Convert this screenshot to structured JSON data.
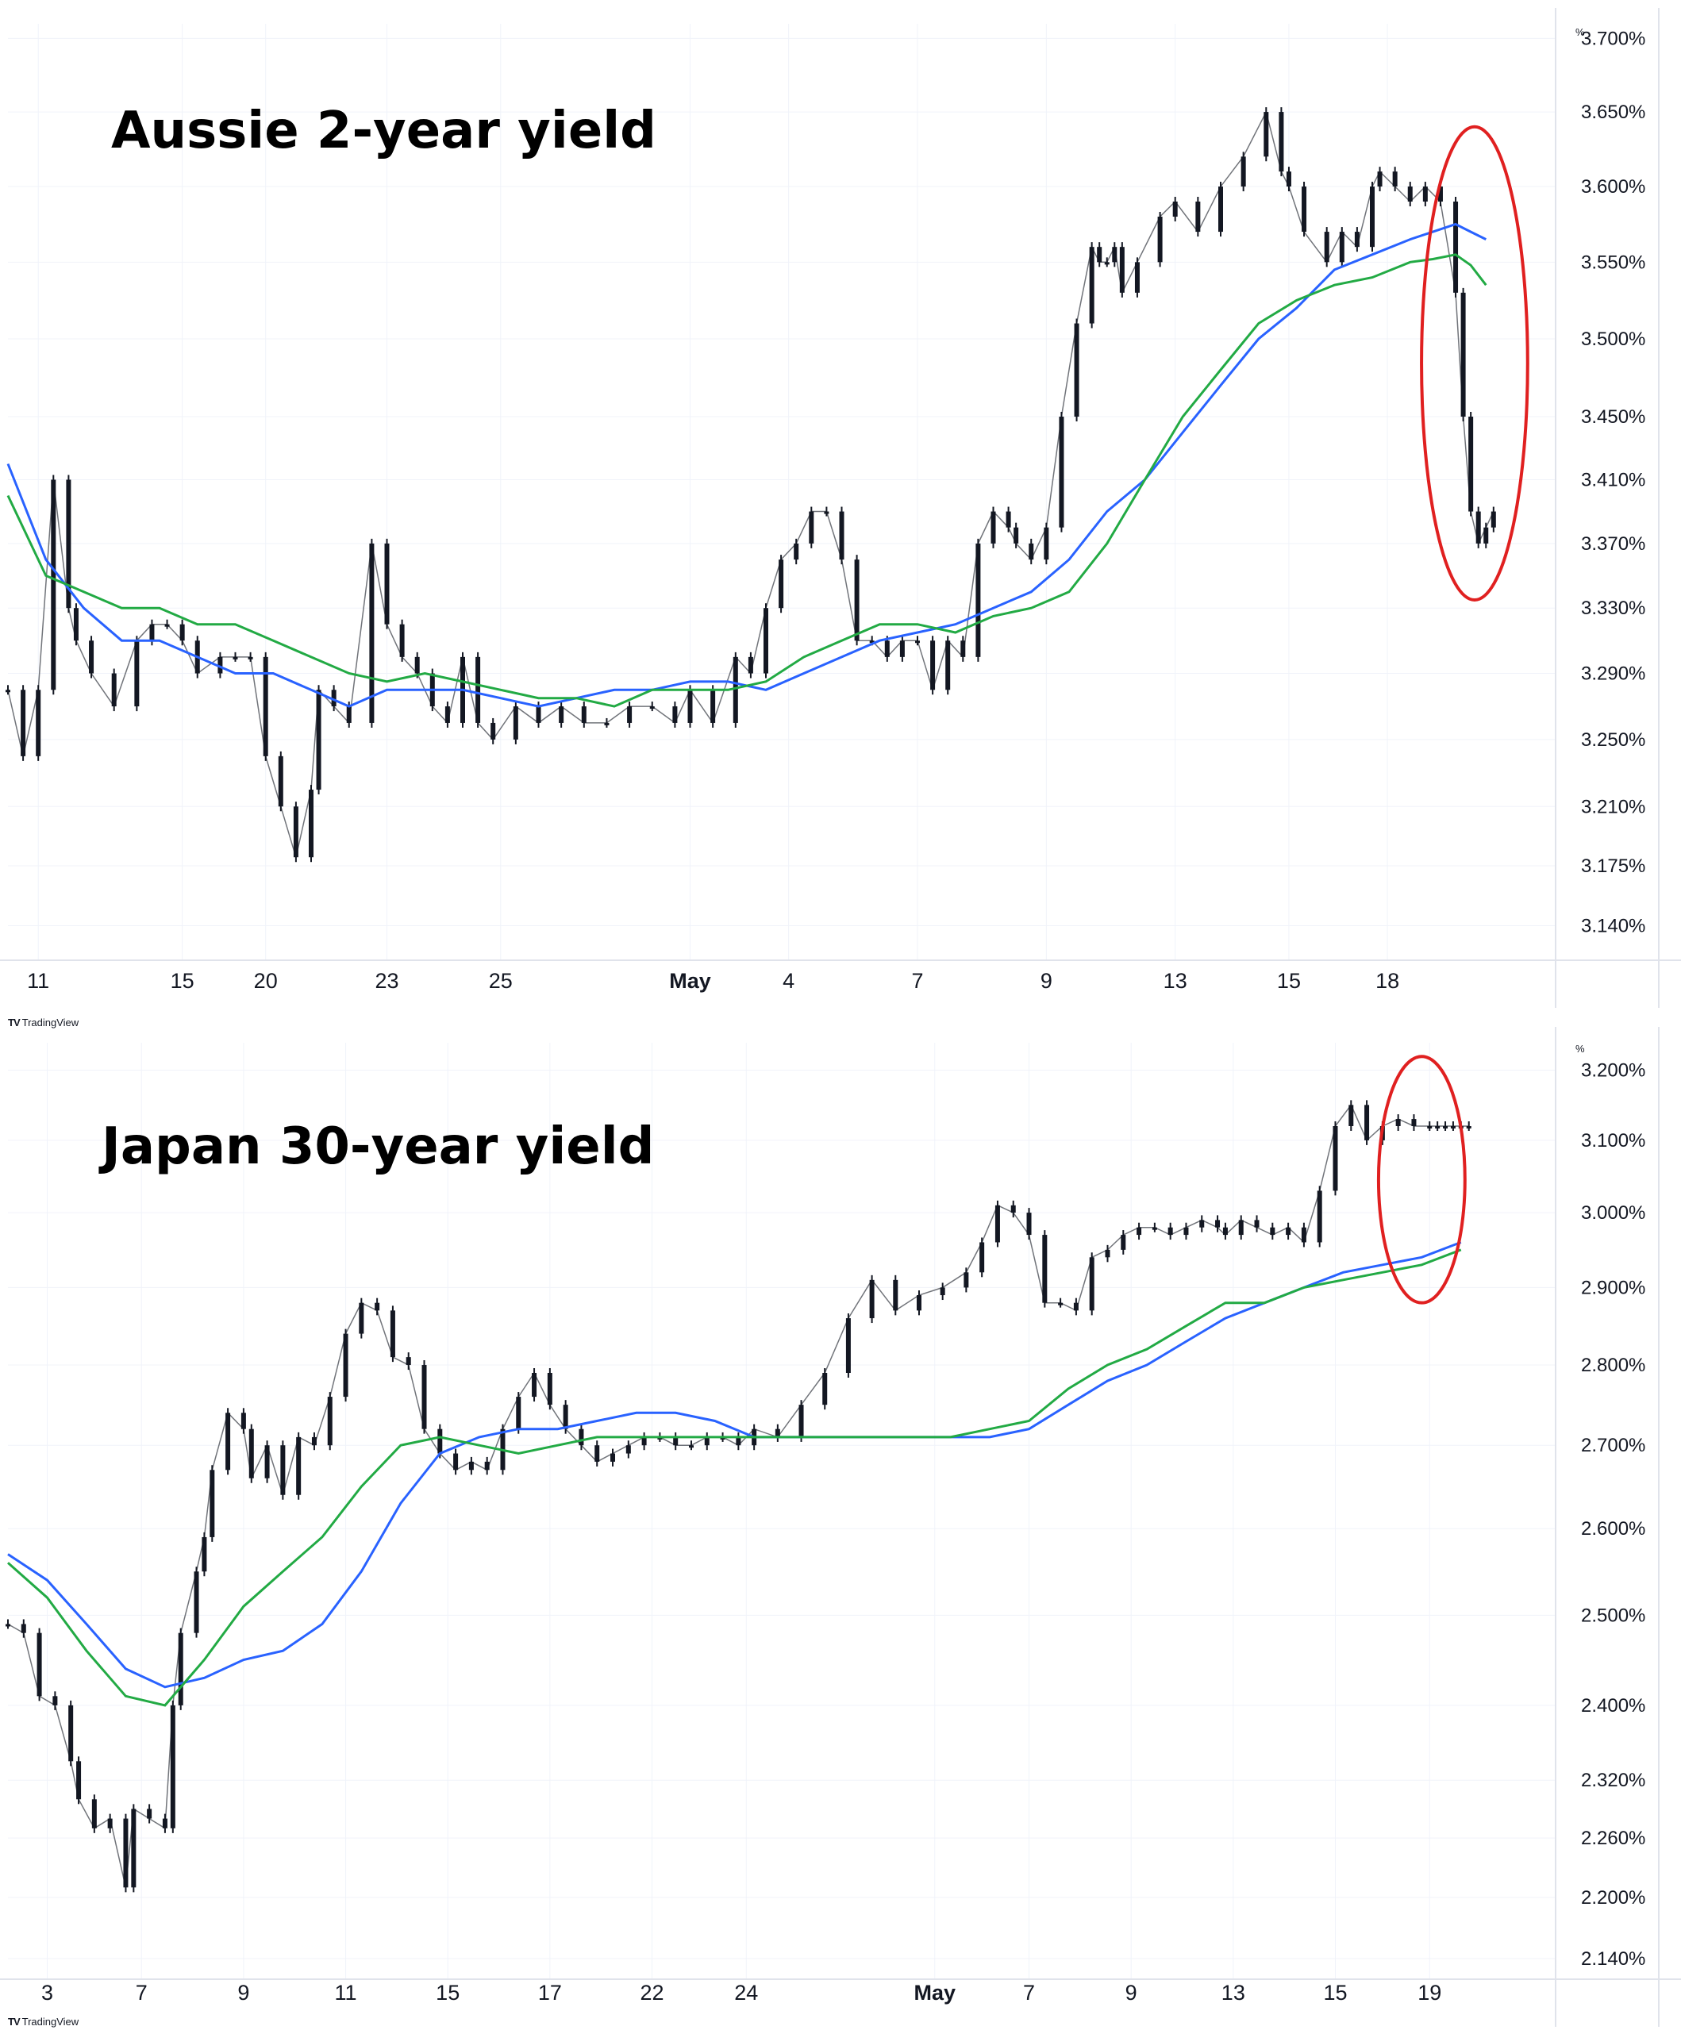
{
  "brand": {
    "logo": "TV",
    "name": "TradingView"
  },
  "colors": {
    "ma_blue": "#2962ff",
    "ma_green": "#22aa44",
    "highlight": "#e02020",
    "candle": "#131722",
    "grid": "#f0f3fa",
    "axis": "#e0e3eb"
  },
  "chart_data": [
    {
      "type": "line",
      "title": "Aussie 2-year yield",
      "unit_label": "%",
      "yscale": "log",
      "ylim": [
        3.12,
        3.71
      ],
      "y_ticks": [
        "3.700%",
        "3.650%",
        "3.600%",
        "3.550%",
        "3.500%",
        "3.450%",
        "3.410%",
        "3.370%",
        "3.330%",
        "3.290%",
        "3.250%",
        "3.210%",
        "3.175%",
        "3.140%"
      ],
      "x_ticks": [
        {
          "label": "11",
          "t": 0.04
        },
        {
          "label": "15",
          "t": 0.23
        },
        {
          "label": "20",
          "t": 0.34
        },
        {
          "label": "23",
          "t": 0.5
        },
        {
          "label": "25",
          "t": 0.65
        },
        {
          "label": "May",
          "t": 0.9,
          "bold": true
        },
        {
          "label": "4",
          "t": 1.03
        },
        {
          "label": "7",
          "t": 1.2
        },
        {
          "label": "9",
          "t": 1.37
        },
        {
          "label": "13",
          "t": 1.54
        },
        {
          "label": "15",
          "t": 1.69
        },
        {
          "label": "18",
          "t": 1.82
        }
      ],
      "x_range": [
        0,
        2.0
      ],
      "series": [
        {
          "kind": "price",
          "x": [
            0.0,
            0.02,
            0.04,
            0.06,
            0.08,
            0.09,
            0.11,
            0.14,
            0.17,
            0.19,
            0.21,
            0.23,
            0.25,
            0.28,
            0.3,
            0.32,
            0.34,
            0.36,
            0.38,
            0.4,
            0.41,
            0.43,
            0.45,
            0.48,
            0.5,
            0.52,
            0.54,
            0.56,
            0.58,
            0.6,
            0.62,
            0.64,
            0.67,
            0.7,
            0.73,
            0.76,
            0.79,
            0.82,
            0.85,
            0.88,
            0.9,
            0.93,
            0.96,
            0.98,
            1.0,
            1.02,
            1.04,
            1.06,
            1.08,
            1.1,
            1.12,
            1.14,
            1.16,
            1.18,
            1.2,
            1.22,
            1.24,
            1.26,
            1.28,
            1.3,
            1.32,
            1.33,
            1.35,
            1.37,
            1.39,
            1.41,
            1.43,
            1.44,
            1.45,
            1.46,
            1.47,
            1.49,
            1.52,
            1.54,
            1.57,
            1.6,
            1.63,
            1.66,
            1.68,
            1.69,
            1.71,
            1.74,
            1.76,
            1.78,
            1.8,
            1.81,
            1.83,
            1.85,
            1.87,
            1.89,
            1.91,
            1.92,
            1.93,
            1.94,
            1.95,
            1.96
          ],
          "y": [
            3.28,
            3.24,
            3.28,
            3.41,
            3.33,
            3.31,
            3.29,
            3.27,
            3.31,
            3.32,
            3.32,
            3.31,
            3.29,
            3.3,
            3.3,
            3.3,
            3.24,
            3.21,
            3.18,
            3.22,
            3.28,
            3.27,
            3.26,
            3.37,
            3.32,
            3.3,
            3.29,
            3.27,
            3.26,
            3.3,
            3.26,
            3.25,
            3.27,
            3.26,
            3.27,
            3.26,
            3.26,
            3.27,
            3.27,
            3.26,
            3.28,
            3.26,
            3.3,
            3.29,
            3.33,
            3.36,
            3.37,
            3.39,
            3.39,
            3.36,
            3.31,
            3.31,
            3.3,
            3.31,
            3.31,
            3.28,
            3.31,
            3.3,
            3.37,
            3.39,
            3.38,
            3.37,
            3.36,
            3.38,
            3.45,
            3.51,
            3.56,
            3.55,
            3.55,
            3.56,
            3.53,
            3.55,
            3.58,
            3.59,
            3.57,
            3.6,
            3.62,
            3.65,
            3.61,
            3.6,
            3.57,
            3.55,
            3.57,
            3.56,
            3.6,
            3.61,
            3.6,
            3.59,
            3.6,
            3.59,
            3.53,
            3.45,
            3.39,
            3.37,
            3.38,
            3.39
          ]
        },
        {
          "kind": "ma",
          "name_key": "blue",
          "x": [
            0.0,
            0.05,
            0.1,
            0.15,
            0.2,
            0.25,
            0.3,
            0.35,
            0.4,
            0.45,
            0.5,
            0.55,
            0.6,
            0.65,
            0.7,
            0.75,
            0.8,
            0.85,
            0.9,
            0.95,
            1.0,
            1.05,
            1.1,
            1.15,
            1.2,
            1.25,
            1.3,
            1.35,
            1.4,
            1.45,
            1.5,
            1.55,
            1.6,
            1.65,
            1.7,
            1.75,
            1.8,
            1.85,
            1.88,
            1.91,
            1.93,
            1.95
          ],
          "y": [
            3.42,
            3.36,
            3.33,
            3.31,
            3.31,
            3.3,
            3.29,
            3.29,
            3.28,
            3.27,
            3.28,
            3.28,
            3.28,
            3.275,
            3.27,
            3.275,
            3.28,
            3.28,
            3.285,
            3.285,
            3.28,
            3.29,
            3.3,
            3.31,
            3.315,
            3.32,
            3.33,
            3.34,
            3.36,
            3.39,
            3.41,
            3.44,
            3.47,
            3.5,
            3.52,
            3.545,
            3.555,
            3.565,
            3.57,
            3.575,
            3.57,
            3.565
          ]
        },
        {
          "kind": "ma",
          "name_key": "green",
          "x": [
            0.0,
            0.05,
            0.1,
            0.15,
            0.2,
            0.25,
            0.3,
            0.35,
            0.4,
            0.45,
            0.5,
            0.55,
            0.6,
            0.65,
            0.7,
            0.75,
            0.8,
            0.85,
            0.9,
            0.95,
            1.0,
            1.05,
            1.1,
            1.15,
            1.2,
            1.25,
            1.3,
            1.35,
            1.4,
            1.45,
            1.5,
            1.55,
            1.6,
            1.65,
            1.7,
            1.75,
            1.8,
            1.85,
            1.88,
            1.91,
            1.93,
            1.95
          ],
          "y": [
            3.4,
            3.35,
            3.34,
            3.33,
            3.33,
            3.32,
            3.32,
            3.31,
            3.3,
            3.29,
            3.285,
            3.29,
            3.285,
            3.28,
            3.275,
            3.275,
            3.27,
            3.28,
            3.28,
            3.28,
            3.285,
            3.3,
            3.31,
            3.32,
            3.32,
            3.315,
            3.325,
            3.33,
            3.34,
            3.37,
            3.41,
            3.45,
            3.48,
            3.51,
            3.525,
            3.535,
            3.54,
            3.55,
            3.552,
            3.555,
            3.548,
            3.535
          ]
        }
      ],
      "highlight": {
        "shape": "ellipse",
        "x_center": 1.935,
        "y_center": 3.46,
        "x_radius": 0.07,
        "y_span": [
          3.335,
          3.64
        ]
      }
    },
    {
      "type": "line",
      "title": "Japan 30-year yield",
      "unit_label": "%",
      "yscale": "log",
      "ylim": [
        2.12,
        3.24
      ],
      "y_ticks": [
        "3.200%",
        "3.100%",
        "3.000%",
        "2.900%",
        "2.800%",
        "2.700%",
        "2.600%",
        "2.500%",
        "2.400%",
        "2.320%",
        "2.260%",
        "2.200%",
        "2.140%"
      ],
      "x_ticks": [
        {
          "label": "3",
          "t": 0.05
        },
        {
          "label": "7",
          "t": 0.17
        },
        {
          "label": "9",
          "t": 0.3
        },
        {
          "label": "11",
          "t": 0.43
        },
        {
          "label": "15",
          "t": 0.56
        },
        {
          "label": "17",
          "t": 0.69
        },
        {
          "label": "22",
          "t": 0.82
        },
        {
          "label": "24",
          "t": 0.94
        },
        {
          "label": "May",
          "t": 1.18,
          "bold": true
        },
        {
          "label": "7",
          "t": 1.3
        },
        {
          "label": "9",
          "t": 1.43
        },
        {
          "label": "13",
          "t": 1.56
        },
        {
          "label": "15",
          "t": 1.69
        },
        {
          "label": "19",
          "t": 1.81
        }
      ],
      "x_range": [
        0,
        1.93
      ],
      "series": [
        {
          "kind": "price",
          "x": [
            0.0,
            0.02,
            0.04,
            0.06,
            0.08,
            0.09,
            0.11,
            0.13,
            0.15,
            0.16,
            0.18,
            0.2,
            0.21,
            0.22,
            0.24,
            0.25,
            0.26,
            0.28,
            0.3,
            0.31,
            0.33,
            0.35,
            0.37,
            0.39,
            0.41,
            0.43,
            0.45,
            0.47,
            0.49,
            0.51,
            0.53,
            0.55,
            0.57,
            0.59,
            0.61,
            0.63,
            0.65,
            0.67,
            0.69,
            0.71,
            0.73,
            0.75,
            0.77,
            0.79,
            0.81,
            0.83,
            0.85,
            0.87,
            0.89,
            0.91,
            0.93,
            0.95,
            0.98,
            1.01,
            1.04,
            1.07,
            1.1,
            1.13,
            1.16,
            1.19,
            1.22,
            1.24,
            1.26,
            1.28,
            1.3,
            1.32,
            1.34,
            1.36,
            1.38,
            1.4,
            1.42,
            1.44,
            1.46,
            1.48,
            1.5,
            1.52,
            1.54,
            1.55,
            1.57,
            1.59,
            1.61,
            1.63,
            1.65,
            1.67,
            1.69,
            1.71,
            1.73,
            1.75,
            1.77,
            1.79,
            1.81,
            1.82,
            1.83,
            1.84,
            1.85,
            1.86
          ],
          "y": [
            2.49,
            2.48,
            2.41,
            2.4,
            2.34,
            2.3,
            2.27,
            2.28,
            2.21,
            2.29,
            2.28,
            2.27,
            2.4,
            2.48,
            2.55,
            2.59,
            2.67,
            2.74,
            2.72,
            2.66,
            2.7,
            2.64,
            2.71,
            2.7,
            2.76,
            2.84,
            2.88,
            2.87,
            2.81,
            2.8,
            2.72,
            2.69,
            2.67,
            2.68,
            2.67,
            2.72,
            2.76,
            2.79,
            2.75,
            2.72,
            2.7,
            2.68,
            2.69,
            2.7,
            2.71,
            2.71,
            2.7,
            2.7,
            2.71,
            2.71,
            2.7,
            2.72,
            2.71,
            2.75,
            2.79,
            2.86,
            2.91,
            2.87,
            2.89,
            2.9,
            2.92,
            2.96,
            3.01,
            3.0,
            2.97,
            2.88,
            2.88,
            2.87,
            2.94,
            2.95,
            2.97,
            2.98,
            2.98,
            2.97,
            2.98,
            2.99,
            2.98,
            2.97,
            2.99,
            2.98,
            2.97,
            2.98,
            2.96,
            3.03,
            3.12,
            3.15,
            3.1,
            3.12,
            3.13,
            3.12,
            3.12,
            3.12,
            3.12,
            3.12,
            3.12,
            3.12
          ]
        },
        {
          "kind": "ma",
          "name_key": "blue",
          "x": [
            0.0,
            0.05,
            0.1,
            0.15,
            0.2,
            0.25,
            0.3,
            0.35,
            0.4,
            0.45,
            0.5,
            0.55,
            0.6,
            0.65,
            0.7,
            0.75,
            0.8,
            0.85,
            0.9,
            0.95,
            1.0,
            1.05,
            1.1,
            1.15,
            1.2,
            1.25,
            1.3,
            1.35,
            1.4,
            1.45,
            1.5,
            1.55,
            1.6,
            1.65,
            1.7,
            1.75,
            1.8,
            1.85
          ],
          "y": [
            2.57,
            2.54,
            2.49,
            2.44,
            2.42,
            2.43,
            2.45,
            2.46,
            2.49,
            2.55,
            2.63,
            2.69,
            2.71,
            2.72,
            2.72,
            2.73,
            2.74,
            2.74,
            2.73,
            2.71,
            2.71,
            2.71,
            2.71,
            2.71,
            2.71,
            2.71,
            2.72,
            2.75,
            2.78,
            2.8,
            2.83,
            2.86,
            2.88,
            2.9,
            2.92,
            2.93,
            2.94,
            2.96
          ]
        },
        {
          "kind": "ma",
          "name_key": "green",
          "x": [
            0.0,
            0.05,
            0.1,
            0.15,
            0.2,
            0.25,
            0.3,
            0.35,
            0.4,
            0.45,
            0.5,
            0.55,
            0.6,
            0.65,
            0.7,
            0.75,
            0.8,
            0.85,
            0.9,
            0.95,
            1.0,
            1.05,
            1.1,
            1.15,
            1.2,
            1.25,
            1.3,
            1.35,
            1.4,
            1.45,
            1.5,
            1.55,
            1.6,
            1.65,
            1.7,
            1.75,
            1.8,
            1.85
          ],
          "y": [
            2.56,
            2.52,
            2.46,
            2.41,
            2.4,
            2.45,
            2.51,
            2.55,
            2.59,
            2.65,
            2.7,
            2.71,
            2.7,
            2.69,
            2.7,
            2.71,
            2.71,
            2.71,
            2.71,
            2.71,
            2.71,
            2.71,
            2.71,
            2.71,
            2.71,
            2.72,
            2.73,
            2.77,
            2.8,
            2.82,
            2.85,
            2.88,
            2.88,
            2.9,
            2.91,
            2.92,
            2.93,
            2.95
          ]
        }
      ],
      "highlight": {
        "shape": "ellipse",
        "x_center": 1.8,
        "y_center": 3.04,
        "x_radius": 0.055,
        "y_span": [
          2.88,
          3.22
        ]
      }
    }
  ]
}
